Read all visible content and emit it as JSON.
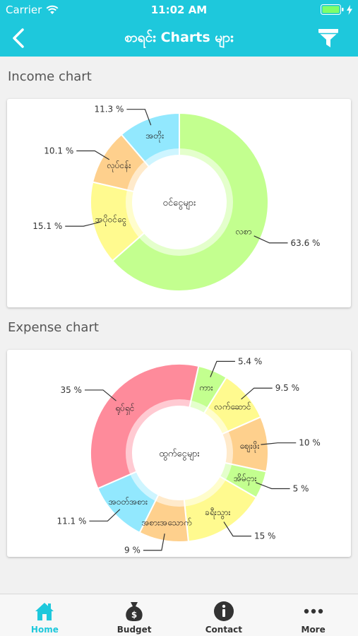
{
  "status": {
    "carrier": "Carrier",
    "time": "11:02 AM"
  },
  "nav": {
    "title": "စာရင်း Charts များ"
  },
  "sections": {
    "income_title": "Income chart",
    "expense_title": "Expense chart"
  },
  "chart_data": [
    {
      "type": "pie",
      "center_label": "ဝင်ငွေများ",
      "slices": [
        {
          "label": "လစာ",
          "value": 63.6,
          "display": "63.6 %",
          "color": "#c3ff8f"
        },
        {
          "label": "အပိုဝင်ငွေ",
          "value": 15.1,
          "display": "15.1 %",
          "color": "#fffa8f"
        },
        {
          "label": "လုပ်ငန်း",
          "value": 10.1,
          "display": "10.1 %",
          "color": "#fed08d"
        },
        {
          "label": "အတိုး",
          "value": 11.3,
          "display": "11.3 %",
          "color": "#92e8fe"
        }
      ]
    },
    {
      "type": "pie",
      "center_label": "ထွက်ငွေများ",
      "slices": [
        {
          "label": "ကား",
          "value": 5.4,
          "display": "5.4 %",
          "color": "#c3ff8f"
        },
        {
          "label": "လက်ဆောင်",
          "value": 9.5,
          "display": "9.5 %",
          "color": "#fffa8f"
        },
        {
          "label": "ဈေးဖိုး",
          "value": 10,
          "display": "10 %",
          "color": "#fed08d"
        },
        {
          "label": "အိမ်ငှား",
          "value": 5,
          "display": "5 %",
          "color": "#c3ff8f"
        },
        {
          "label": "ခရီးသွား",
          "value": 15,
          "display": "15 %",
          "color": "#fffa8f"
        },
        {
          "label": "အစားအသောက်",
          "value": 9,
          "display": "9 %",
          "color": "#fed08d"
        },
        {
          "label": "အဝတ်အစား",
          "value": 11.1,
          "display": "11.1 %",
          "color": "#92e8fe"
        },
        {
          "label": "ရုပ်ရှင်",
          "value": 35,
          "display": "35 %",
          "color": "#fe8b9b"
        }
      ]
    }
  ],
  "tabs": [
    {
      "label": "Home",
      "icon": "home-icon"
    },
    {
      "label": "Budget",
      "icon": "money-bag-icon"
    },
    {
      "label": "Contact",
      "icon": "info-icon"
    },
    {
      "label": "More",
      "icon": "more-icon"
    }
  ],
  "colors": {
    "accent": "#1ec8dc"
  }
}
